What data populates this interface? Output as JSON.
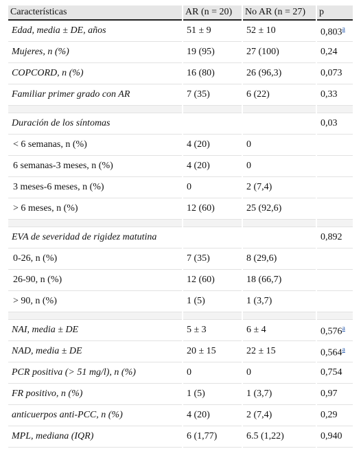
{
  "table": {
    "header": [
      "Características",
      "AR (n = 20)",
      "No AR (n = 27)",
      "p"
    ],
    "groups": [
      {
        "rows": [
          {
            "label": "Edad, media ± DE, años",
            "ar": "51 ± 9",
            "noar": "52 ± 10",
            "p": "0,803",
            "note": "a"
          },
          {
            "label": "Mujeres, n (%)",
            "ar": "19 (95)",
            "noar": "27 (100)",
            "p": "0,24"
          },
          {
            "label": "COPCORD, n (%)",
            "ar": "16 (80)",
            "noar": "26 (96,3)",
            "p": "0,073"
          },
          {
            "label": "Familiar primer grado con AR",
            "ar": "7 (35)",
            "noar": "6 (22)",
            "p": "0,33"
          }
        ]
      },
      {
        "rows": [
          {
            "label": "Duración de los síntomas",
            "p": "0,03"
          },
          {
            "label": "< 6 semanas, n (%)",
            "ar": "4 (20)",
            "noar": "0",
            "sub": true
          },
          {
            "label": "6 semanas-3 meses, n (%)",
            "ar": "4 (20)",
            "noar": "0",
            "sub": true
          },
          {
            "label": "3 meses-6 meses, n (%)",
            "ar": "0",
            "noar": "2 (7,4)",
            "sub": true
          },
          {
            "label": "> 6 meses, n (%)",
            "ar": "12 (60)",
            "noar": "25 (92,6)",
            "sub": true
          }
        ]
      },
      {
        "rows": [
          {
            "label": "EVA de severidad de rigidez matutina",
            "p": "0,892"
          },
          {
            "label": "0-26, n (%)",
            "ar": "7 (35)",
            "noar": "8 (29,6)",
            "sub": true
          },
          {
            "label": "26-90, n (%)",
            "ar": "12 (60)",
            "noar": "18 (66,7)",
            "sub": true
          },
          {
            "label": "> 90, n (%)",
            "ar": "1 (5)",
            "noar": "1 (3,7)",
            "sub": true
          }
        ]
      },
      {
        "rows": [
          {
            "label": "NAI, media ± DE",
            "ar": "5 ± 3",
            "noar": "6 ± 4",
            "p": "0,576",
            "note": "a"
          },
          {
            "label": "NAD, media ± DE",
            "ar": "20 ± 15",
            "noar": "22 ± 15",
            "p": "0,564",
            "note": "a"
          },
          {
            "label": "PCR positiva (> 51 mg/l), n (%)",
            "ar": "0",
            "noar": "0",
            "p": "0,754"
          },
          {
            "label": "FR positivo, n (%)",
            "ar": "1 (5)",
            "noar": "1 (3,7)",
            "p": "0,97"
          },
          {
            "label": "anticuerpos anti-PCC, n (%)",
            "ar": "4 (20)",
            "noar": "2 (7,4)",
            "p": "0,29"
          },
          {
            "label": "MPL, mediana (IQR)",
            "ar": "6 (1,77)",
            "noar": "6.5 (1,22)",
            "p": "0,940"
          }
        ]
      }
    ]
  }
}
